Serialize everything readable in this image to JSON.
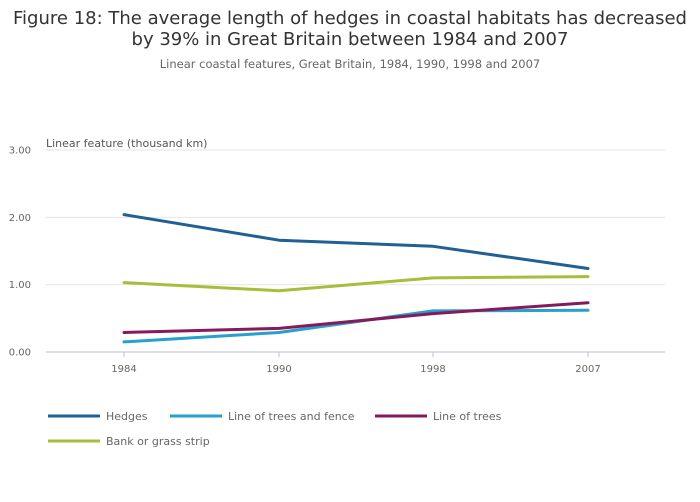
{
  "title_lines": [
    "Figure 18: The average length of hedges in coastal habitats has decreased",
    "by 39% in Great Britain between 1984 and 2007"
  ],
  "subtitle": "Linear coastal features, Great Britain, 1984, 1990, 1998 and 2007",
  "chart_data": {
    "type": "line",
    "title": "Figure 18: The average length of hedges in coastal habitats has decreased by 39% in Great Britain between 1984 and 2007",
    "subtitle": "Linear coastal features, Great Britain, 1984, 1990, 1998 and 2007",
    "ylabel": "Linear feature (thousand km)",
    "xlabel": "",
    "categories": [
      "1984",
      "1990",
      "1998",
      "2007"
    ],
    "ylim": [
      0,
      3
    ],
    "yticks": [
      "0.00",
      "1.00",
      "2.00",
      "3.00"
    ],
    "grid": true,
    "legend_position": "bottom",
    "series": [
      {
        "name": "Hedges",
        "color": "#206095",
        "values": [
          2.04,
          1.66,
          1.57,
          1.24
        ]
      },
      {
        "name": "Line of trees and fence",
        "color": "#27a0cc",
        "values": [
          0.15,
          0.29,
          0.61,
          0.62
        ]
      },
      {
        "name": "Line of trees",
        "color": "#871a5b",
        "values": [
          0.29,
          0.35,
          0.57,
          0.73
        ]
      },
      {
        "name": "Bank or grass strip",
        "color": "#a8bd3a",
        "values": [
          1.03,
          0.91,
          1.1,
          1.12
        ]
      }
    ]
  }
}
